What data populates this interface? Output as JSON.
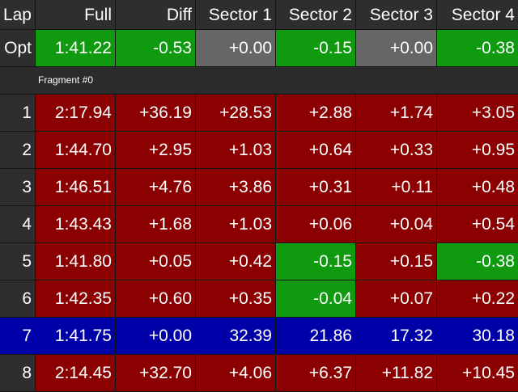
{
  "headers": [
    "Lap",
    "Full",
    "Diff",
    "Sector 1",
    "Sector 2",
    "Sector 3",
    "Sector 4"
  ],
  "optimal": {
    "lap": "Opt",
    "cells": [
      {
        "text": "1:41.22",
        "color": "green"
      },
      {
        "text": "-0.53",
        "color": "green"
      },
      {
        "text": "+0.00",
        "color": "gray"
      },
      {
        "text": "-0.15",
        "color": "green"
      },
      {
        "text": "+0.00",
        "color": "gray"
      },
      {
        "text": "-0.38",
        "color": "green"
      }
    ]
  },
  "fragment_label": "Fragment #0",
  "laps": [
    {
      "lap": "1",
      "cells": [
        {
          "text": "2:17.94",
          "color": "red"
        },
        {
          "text": "+36.19",
          "color": "red"
        },
        {
          "text": "+28.53",
          "color": "red"
        },
        {
          "text": "+2.88",
          "color": "red"
        },
        {
          "text": "+1.74",
          "color": "red"
        },
        {
          "text": "+3.05",
          "color": "red"
        }
      ]
    },
    {
      "lap": "2",
      "cells": [
        {
          "text": "1:44.70",
          "color": "red"
        },
        {
          "text": "+2.95",
          "color": "red"
        },
        {
          "text": "+1.03",
          "color": "red"
        },
        {
          "text": "+0.64",
          "color": "red"
        },
        {
          "text": "+0.33",
          "color": "red"
        },
        {
          "text": "+0.95",
          "color": "red"
        }
      ]
    },
    {
      "lap": "3",
      "cells": [
        {
          "text": "1:46.51",
          "color": "red"
        },
        {
          "text": "+4.76",
          "color": "red"
        },
        {
          "text": "+3.86",
          "color": "red"
        },
        {
          "text": "+0.31",
          "color": "red"
        },
        {
          "text": "+0.11",
          "color": "red"
        },
        {
          "text": "+0.48",
          "color": "red"
        }
      ]
    },
    {
      "lap": "4",
      "cells": [
        {
          "text": "1:43.43",
          "color": "red"
        },
        {
          "text": "+1.68",
          "color": "red"
        },
        {
          "text": "+1.03",
          "color": "red"
        },
        {
          "text": "+0.06",
          "color": "red"
        },
        {
          "text": "+0.04",
          "color": "red"
        },
        {
          "text": "+0.54",
          "color": "red"
        }
      ]
    },
    {
      "lap": "5",
      "cells": [
        {
          "text": "1:41.80",
          "color": "red"
        },
        {
          "text": "+0.05",
          "color": "red"
        },
        {
          "text": "+0.42",
          "color": "red"
        },
        {
          "text": "-0.15",
          "color": "green"
        },
        {
          "text": "+0.15",
          "color": "red"
        },
        {
          "text": "-0.38",
          "color": "green"
        }
      ]
    },
    {
      "lap": "6",
      "cells": [
        {
          "text": "1:42.35",
          "color": "red"
        },
        {
          "text": "+0.60",
          "color": "red"
        },
        {
          "text": "+0.35",
          "color": "red"
        },
        {
          "text": "-0.04",
          "color": "green"
        },
        {
          "text": "+0.07",
          "color": "red"
        },
        {
          "text": "+0.22",
          "color": "red"
        }
      ]
    },
    {
      "lap": "7",
      "row_color": "blue",
      "cells": [
        {
          "text": "1:41.75",
          "color": "blue"
        },
        {
          "text": "+0.00",
          "color": "blue"
        },
        {
          "text": "32.39",
          "color": "blue"
        },
        {
          "text": "21.86",
          "color": "blue"
        },
        {
          "text": "17.32",
          "color": "blue"
        },
        {
          "text": "30.18",
          "color": "blue"
        }
      ]
    },
    {
      "lap": "8",
      "cells": [
        {
          "text": "2:14.45",
          "color": "red"
        },
        {
          "text": "+32.70",
          "color": "red"
        },
        {
          "text": "+4.06",
          "color": "red"
        },
        {
          "text": "+6.37",
          "color": "red"
        },
        {
          "text": "+11.82",
          "color": "red"
        },
        {
          "text": "+10.45",
          "color": "red"
        }
      ]
    }
  ]
}
